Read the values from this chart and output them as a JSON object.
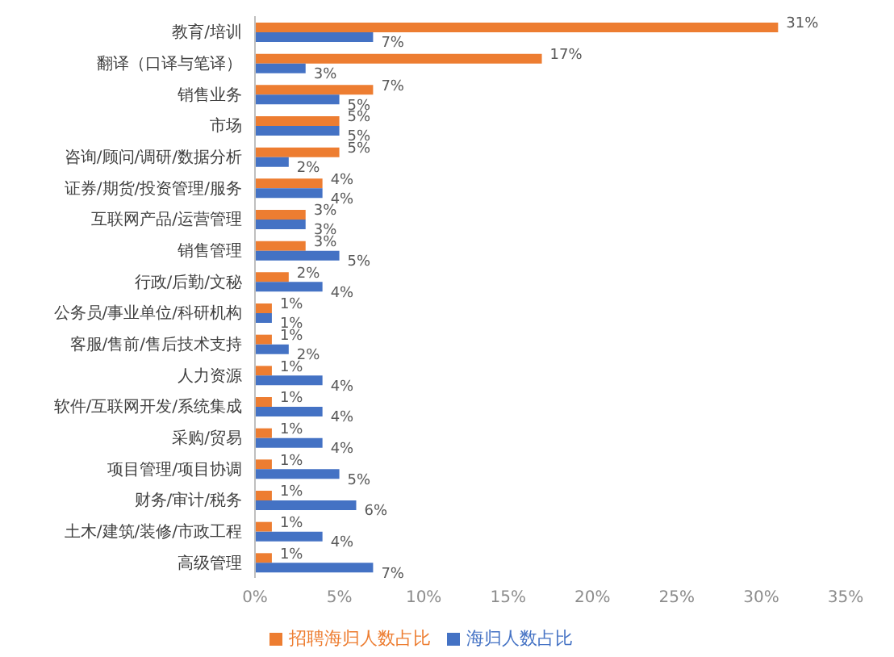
{
  "chart_data": {
    "type": "bar",
    "orientation": "horizontal",
    "categories": [
      "教育/培训",
      "翻译（口译与笔译）",
      "销售业务",
      "市场",
      "咨询/顾问/调研/数据分析",
      "证券/期货/投资管理/服务",
      "互联网产品/运营管理",
      "销售管理",
      "行政/后勤/文秘",
      "公务员/事业单位/科研机构",
      "客服/售前/售后技术支持",
      "人力资源",
      "软件/互联网开发/系统集成",
      "采购/贸易",
      "项目管理/项目协调",
      "财务/审计/税务",
      "土木/建筑/装修/市政工程",
      "高级管理"
    ],
    "series": [
      {
        "name": "招聘海归人数占比",
        "color": "#ed7d31",
        "values": [
          31,
          17,
          7,
          5,
          5,
          4,
          3,
          3,
          2,
          1,
          1,
          1,
          1,
          1,
          1,
          1,
          1,
          1
        ],
        "value_labels": [
          "31%",
          "17%",
          "7%",
          "5%",
          "5%",
          "4%",
          "3%",
          "3%",
          "2%",
          "1%",
          "1%",
          "1%",
          "1%",
          "1%",
          "1%",
          "1%",
          "1%",
          "1%"
        ]
      },
      {
        "name": "海归人数占比",
        "color": "#4472c4",
        "values": [
          7,
          3,
          5,
          5,
          2,
          4,
          3,
          5,
          4,
          1,
          2,
          4,
          4,
          4,
          5,
          6,
          4,
          7
        ],
        "value_labels": [
          "7%",
          "3%",
          "5%",
          "5%",
          "2%",
          "4%",
          "3%",
          "5%",
          "4%",
          "1%",
          "2%",
          "4%",
          "4%",
          "4%",
          "5%",
          "6%",
          "4%",
          "7%"
        ]
      }
    ],
    "xlim": [
      0,
      35
    ],
    "xticks": [
      {
        "value": 0,
        "label": "0%"
      },
      {
        "value": 5,
        "label": "5%"
      },
      {
        "value": 10,
        "label": "10%"
      },
      {
        "value": 15,
        "label": "15%"
      },
      {
        "value": 20,
        "label": "20%"
      },
      {
        "value": 25,
        "label": "25%"
      },
      {
        "value": 30,
        "label": "30%"
      },
      {
        "value": 35,
        "label": "35%"
      }
    ],
    "grid": false,
    "legend": "bottom"
  }
}
